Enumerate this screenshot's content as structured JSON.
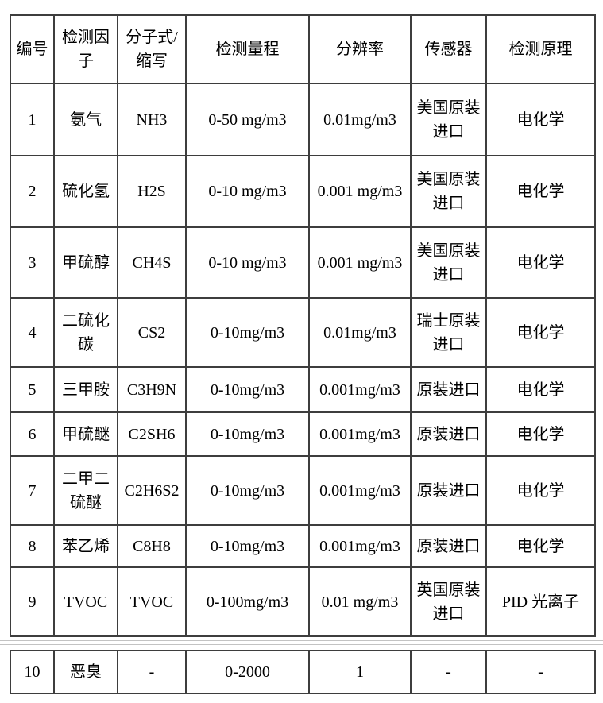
{
  "page": {
    "background": "#ffffff",
    "border_color": "#3d3d3d"
  },
  "table": {
    "headers": [
      "编号",
      "检测因子",
      "分子式/缩写",
      "检测量程",
      "分辨率",
      "传感器",
      "检测原理"
    ],
    "rows": [
      {
        "cells": [
          "1",
          "氨气",
          "NH3",
          "0-50 mg/m3",
          "0.01mg/m3",
          "美国原装进口",
          "电化学"
        ]
      },
      {
        "cells": [
          "2",
          "硫化氢",
          "H2S",
          "0-10 mg/m3",
          "0.001 mg/m3",
          "美国原装进口",
          "电化学"
        ]
      },
      {
        "cells": [
          "3",
          "甲硫醇",
          "CH4S",
          "0-10 mg/m3",
          "0.001 mg/m3",
          "美国原装进口",
          "电化学"
        ]
      },
      {
        "cells": [
          "4",
          "二硫化碳",
          "CS2",
          "0-10mg/m3",
          "0.01mg/m3",
          "瑞士原装进口",
          "电化学"
        ]
      },
      {
        "cells": [
          "5",
          "三甲胺",
          "C3H9N",
          "0-10mg/m3",
          "0.001mg/m3",
          "原装进口",
          "电化学"
        ]
      },
      {
        "cells": [
          "6",
          "甲硫醚",
          "C2SH6",
          "0-10mg/m3",
          "0.001mg/m3",
          "原装进口",
          "电化学"
        ]
      },
      {
        "cells": [
          "7",
          "二甲二硫醚",
          "C2H6S2",
          "0-10mg/m3",
          "0.001mg/m3",
          "原装进口",
          "电化学"
        ]
      },
      {
        "cells": [
          "8",
          "苯乙烯",
          "C8H8",
          "0-10mg/m3",
          "0.001mg/m3",
          "原装进口",
          "电化学"
        ]
      },
      {
        "cells": [
          "9",
          "TVOC",
          "TVOC",
          "0-100mg/m3",
          "0.01 mg/m3",
          "英国原装进口",
          "PID 光离子"
        ]
      }
    ]
  },
  "table_continued": {
    "rows": [
      {
        "cells": [
          "10",
          "恶臭",
          "-",
          "0-2000",
          "1",
          "-",
          "-"
        ]
      }
    ]
  }
}
